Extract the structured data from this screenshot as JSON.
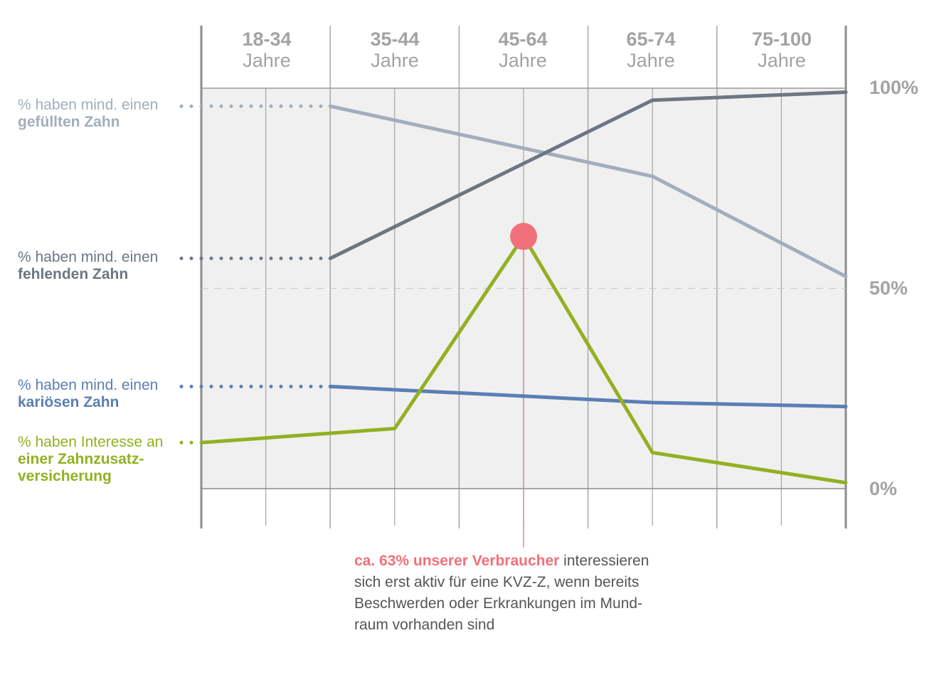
{
  "chart_data": {
    "type": "line",
    "categories": [
      "18-34",
      "35-44",
      "45-64",
      "65-74",
      "75-100"
    ],
    "category_unit": "Jahre",
    "yticks": [
      "100%",
      "50%",
      "0%"
    ],
    "ylim": [
      0,
      100
    ],
    "grid": true,
    "series": [
      {
        "name": "gefüllten Zahn",
        "label_prefix": "% haben mind. einen",
        "label_bold": "gefüllten Zahn",
        "color": "#a3adbc",
        "points": [
          [
            1,
            95.5
          ],
          [
            3.5,
            78
          ],
          [
            5,
            53
          ]
        ]
      },
      {
        "name": "fehlenden Zahn",
        "label_prefix": "% haben mind. einen",
        "label_bold": "fehlenden Zahn",
        "color": "#6d7682",
        "points": [
          [
            1,
            57.5
          ],
          [
            3.5,
            97
          ],
          [
            5,
            99
          ]
        ]
      },
      {
        "name": "kariösen Zahn",
        "label_prefix": "% haben mind. einen",
        "label_bold": "kariösen Zahn",
        "color": "#5a7fb3",
        "points": [
          [
            1,
            25.5
          ],
          [
            3.5,
            21.5
          ],
          [
            5,
            20.5
          ]
        ]
      },
      {
        "name": "einer Zahnzusatzversicherung",
        "label_prefix": "% haben Interesse an",
        "label_bold_lines": [
          "einer Zahnzusatz-",
          "versicherung"
        ],
        "color": "#93b022",
        "points": [
          [
            0,
            11.5
          ],
          [
            1.5,
            15
          ],
          [
            2.5,
            63
          ],
          [
            3.5,
            9
          ],
          [
            5,
            1.5
          ]
        ]
      }
    ],
    "highlight": {
      "x": 2.5,
      "y": 63,
      "color": "#f2707a"
    },
    "annotation": {
      "highlight": "ca. 63% unserer Verbraucher",
      "rest_lines": [
        " interessieren",
        "sich erst aktiv für eine KVZ-Z, wenn bereits",
        "Beschwerden oder Erkrankungen im Mund-",
        "raum vorhanden sind"
      ]
    }
  }
}
